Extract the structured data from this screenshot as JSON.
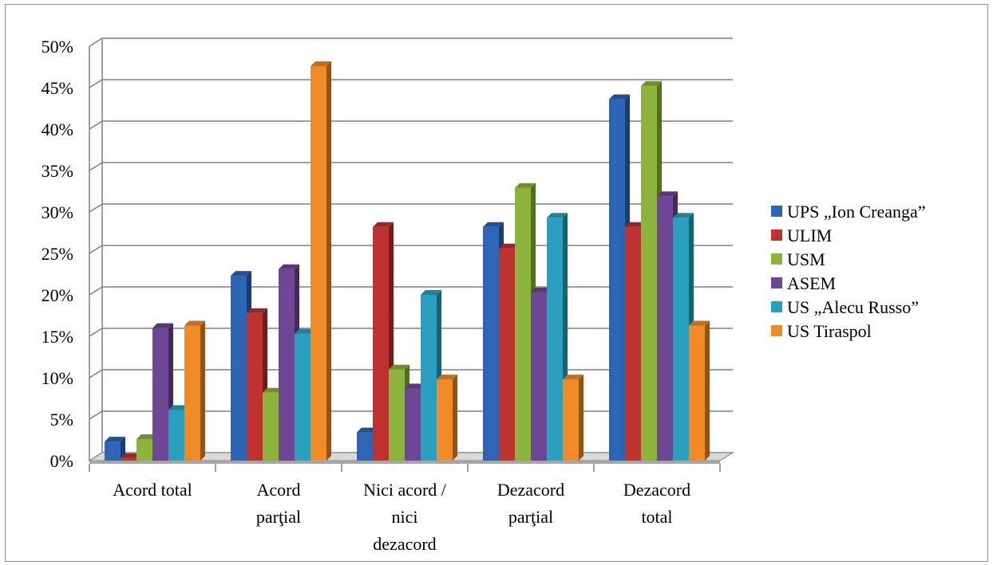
{
  "chart_data": {
    "type": "bar",
    "title": "",
    "xlabel": "",
    "ylabel": "",
    "ylim": [
      0,
      50
    ],
    "y_ticks": [
      "0%",
      "5%",
      "10%",
      "15%",
      "20%",
      "25%",
      "30%",
      "35%",
      "40%",
      "45%",
      "50%"
    ],
    "categories": [
      [
        "Acord total"
      ],
      [
        "Acord",
        "parţial"
      ],
      [
        "Nici acord /",
        "nici",
        "dezacord"
      ],
      [
        "Dezacord",
        "parţial"
      ],
      [
        "Dezacord",
        "total"
      ]
    ],
    "series": [
      {
        "name": "UPS „Ion Creanga”",
        "color": "#2e64b4",
        "values": [
          2.3,
          22.3,
          3.4,
          28.2,
          43.6
        ]
      },
      {
        "name": "ULIM",
        "color": "#be3230",
        "values": [
          0.3,
          17.8,
          28.2,
          25.6,
          28.2
        ]
      },
      {
        "name": "USM",
        "color": "#8cb43c",
        "values": [
          2.6,
          8.2,
          11.0,
          32.9,
          45.2
        ]
      },
      {
        "name": "ASEM",
        "color": "#6e4696",
        "values": [
          16.0,
          23.1,
          8.7,
          20.3,
          31.9
        ]
      },
      {
        "name": "US „Alecu Russo”",
        "color": "#2aa0c0",
        "values": [
          6.1,
          15.3,
          20.0,
          29.3,
          29.3
        ]
      },
      {
        "name": "US Tiraspol",
        "color": "#f08c28",
        "values": [
          16.3,
          47.6,
          9.8,
          9.8,
          16.3
        ]
      }
    ],
    "grid": true,
    "legend_position": "right"
  }
}
